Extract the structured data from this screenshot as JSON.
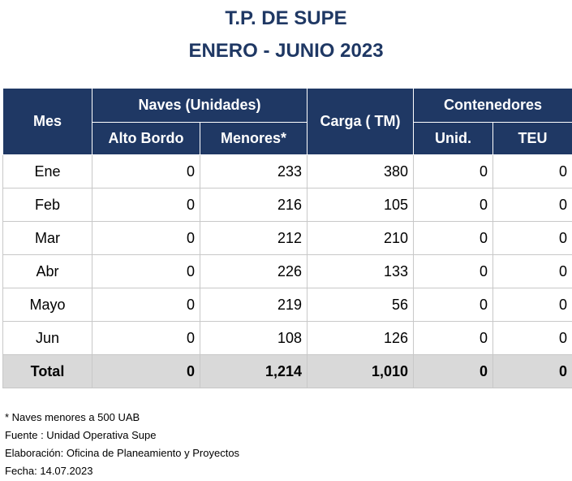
{
  "title": {
    "line1": "T.P. DE SUPE",
    "line2": "ENERO - JUNIO 2023"
  },
  "table": {
    "headers": {
      "mes": "Mes",
      "naves": "Naves (Unidades)",
      "alto_bordo": "Alto Bordo",
      "menores": "Menores*",
      "carga": "Carga ( TM)",
      "contenedores": "Contenedores",
      "unid": "Unid.",
      "teu": "TEU"
    },
    "rows": [
      {
        "mes": "Ene",
        "alto_bordo": "0",
        "menores": "233",
        "carga": "380",
        "unid": "0",
        "teu": "0"
      },
      {
        "mes": "Feb",
        "alto_bordo": "0",
        "menores": "216",
        "carga": "105",
        "unid": "0",
        "teu": "0"
      },
      {
        "mes": "Mar",
        "alto_bordo": "0",
        "menores": "212",
        "carga": "210",
        "unid": "0",
        "teu": "0"
      },
      {
        "mes": "Abr",
        "alto_bordo": "0",
        "menores": "226",
        "carga": "133",
        "unid": "0",
        "teu": "0"
      },
      {
        "mes": "Mayo",
        "alto_bordo": "0",
        "menores": "219",
        "carga": "56",
        "unid": "0",
        "teu": "0"
      },
      {
        "mes": "Jun",
        "alto_bordo": "0",
        "menores": "108",
        "carga": "126",
        "unid": "0",
        "teu": "0"
      }
    ],
    "total": {
      "mes": "Total",
      "alto_bordo": "0",
      "menores": "1,214",
      "carga": "1,010",
      "unid": "0",
      "teu": "0"
    }
  },
  "notes": [
    "* Naves menores a 500 UAB",
    "Fuente : Unidad Operativa Supe",
    "Elaboración: Oficina de Planeamiento y Proyectos",
    "Fecha: 14.07.2023"
  ],
  "colors": {
    "header_bg": "#1f3864",
    "title_text": "#1f3864",
    "total_row_bg": "#d9d9d9"
  }
}
